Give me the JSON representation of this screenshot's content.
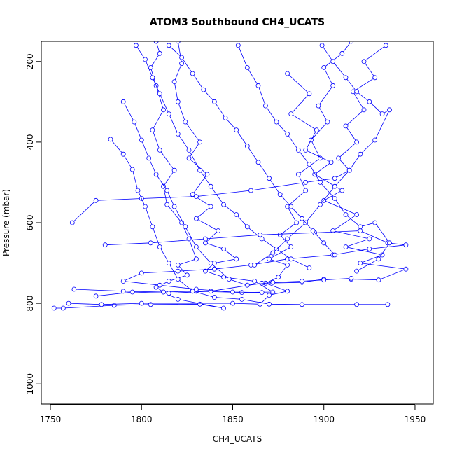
{
  "chart_data": {
    "type": "scatter",
    "title": "ATOM3 Southbound CH4_UCATS",
    "xlabel": "CH4_UCATS",
    "ylabel": "Pressure (mbar)",
    "xlim": [
      1745,
      1960
    ],
    "ylim": [
      1050,
      150
    ],
    "y_reversed": true,
    "grid": false,
    "legend": "none",
    "x_ticks": [
      "1750",
      "1800",
      "1850",
      "1900",
      "1950"
    ],
    "y_ticks": [
      "200",
      "400",
      "600",
      "800",
      "1000"
    ],
    "colors": {
      "series": "#0000ff",
      "axis": "#000000",
      "background": "#ffffff"
    },
    "series": [
      {
        "values": [
          [
            1752,
            812
          ],
          [
            1757,
            812
          ],
          [
            1785,
            805
          ],
          [
            1805,
            803
          ],
          [
            1832,
            802
          ],
          [
            1845,
            812
          ],
          [
            1820,
            790
          ],
          [
            1812,
            772
          ],
          [
            1808,
            760
          ],
          [
            1815,
            745
          ],
          [
            1825,
            730
          ],
          [
            1820,
            705
          ],
          [
            1830,
            690
          ],
          [
            1826,
            640
          ],
          [
            1822,
            600
          ],
          [
            1814,
            555
          ],
          [
            1812,
            510
          ],
          [
            1818,
            470
          ],
          [
            1810,
            420
          ],
          [
            1806,
            370
          ],
          [
            1812,
            320
          ],
          [
            1808,
            260
          ],
          [
            1805,
            215
          ],
          [
            1810,
            180
          ],
          [
            1808,
            150
          ]
        ]
      },
      {
        "values": [
          [
            1760,
            800
          ],
          [
            1778,
            803
          ],
          [
            1800,
            800
          ],
          [
            1850,
            800
          ],
          [
            1865,
            802
          ],
          [
            1870,
            780
          ],
          [
            1880,
            770
          ],
          [
            1868,
            750
          ],
          [
            1875,
            735
          ],
          [
            1880,
            705
          ],
          [
            1870,
            690
          ],
          [
            1882,
            660
          ],
          [
            1876,
            630
          ],
          [
            1885,
            600
          ],
          [
            1880,
            560
          ],
          [
            1890,
            520
          ],
          [
            1886,
            480
          ],
          [
            1898,
            440
          ],
          [
            1893,
            395
          ],
          [
            1902,
            350
          ],
          [
            1897,
            310
          ],
          [
            1905,
            260
          ],
          [
            1900,
            215
          ],
          [
            1910,
            180
          ],
          [
            1915,
            150
          ]
        ]
      },
      {
        "values": [
          [
            1763,
            765
          ],
          [
            1790,
            770
          ],
          [
            1812,
            772
          ],
          [
            1830,
            770
          ],
          [
            1855,
            773
          ],
          [
            1872,
            772
          ],
          [
            1862,
            745
          ],
          [
            1845,
            735
          ],
          [
            1835,
            720
          ],
          [
            1840,
            700
          ],
          [
            1852,
            690
          ],
          [
            1845,
            665
          ],
          [
            1835,
            650
          ],
          [
            1842,
            620
          ],
          [
            1830,
            590
          ],
          [
            1838,
            560
          ],
          [
            1828,
            530
          ],
          [
            1836,
            480
          ],
          [
            1826,
            440
          ],
          [
            1832,
            400
          ],
          [
            1824,
            350
          ],
          [
            1820,
            300
          ],
          [
            1818,
            250
          ],
          [
            1822,
            205
          ],
          [
            1820,
            150
          ]
        ]
      },
      {
        "values": [
          [
            1775,
            782
          ],
          [
            1795,
            772
          ],
          [
            1815,
            775
          ],
          [
            1838,
            770
          ],
          [
            1866,
            750
          ],
          [
            1888,
            748
          ],
          [
            1900,
            740
          ],
          [
            1915,
            740
          ],
          [
            1930,
            742
          ],
          [
            1945,
            715
          ],
          [
            1920,
            700
          ],
          [
            1932,
            680
          ],
          [
            1912,
            660
          ],
          [
            1925,
            640
          ],
          [
            1905,
            620
          ],
          [
            1918,
            580
          ],
          [
            1900,
            545
          ],
          [
            1910,
            520
          ],
          [
            1895,
            480
          ],
          [
            1904,
            450
          ],
          [
            1890,
            420
          ],
          [
            1896,
            370
          ],
          [
            1882,
            330
          ],
          [
            1892,
            280
          ],
          [
            1880,
            230
          ]
        ]
      },
      {
        "values": [
          [
            1762,
            600
          ],
          [
            1775,
            545
          ],
          [
            1800,
            540
          ],
          [
            1830,
            535
          ],
          [
            1860,
            520
          ],
          [
            1890,
            500
          ],
          [
            1906,
            490
          ],
          [
            1914,
            470
          ],
          [
            1908,
            440
          ],
          [
            1918,
            400
          ],
          [
            1912,
            360
          ],
          [
            1922,
            320
          ],
          [
            1916,
            275
          ],
          [
            1928,
            240
          ],
          [
            1922,
            200
          ],
          [
            1934,
            160
          ]
        ]
      },
      {
        "values": [
          [
            1780,
            655
          ],
          [
            1805,
            650
          ],
          [
            1835,
            640
          ],
          [
            1865,
            630
          ],
          [
            1895,
            625
          ],
          [
            1920,
            620
          ],
          [
            1935,
            650
          ],
          [
            1945,
            655
          ],
          [
            1925,
            665
          ],
          [
            1905,
            680
          ],
          [
            1880,
            690
          ],
          [
            1860,
            705
          ],
          [
            1840,
            715
          ],
          [
            1820,
            720
          ],
          [
            1800,
            725
          ],
          [
            1790,
            745
          ],
          [
            1810,
            755
          ],
          [
            1830,
            765
          ],
          [
            1850,
            772
          ],
          [
            1866,
            773
          ]
        ]
      },
      {
        "values": [
          [
            1783,
            393
          ],
          [
            1790,
            430
          ],
          [
            1795,
            468
          ],
          [
            1798,
            520
          ],
          [
            1802,
            560
          ],
          [
            1806,
            610
          ],
          [
            1810,
            660
          ],
          [
            1815,
            700
          ],
          [
            1820,
            740
          ],
          [
            1828,
            770
          ],
          [
            1840,
            785
          ],
          [
            1855,
            790
          ],
          [
            1870,
            802
          ],
          [
            1888,
            803
          ],
          [
            1918,
            803
          ],
          [
            1935,
            803
          ]
        ]
      },
      {
        "values": [
          [
            1790,
            300
          ],
          [
            1796,
            350
          ],
          [
            1800,
            395
          ],
          [
            1804,
            440
          ],
          [
            1808,
            480
          ],
          [
            1814,
            520
          ],
          [
            1818,
            560
          ],
          [
            1824,
            610
          ],
          [
            1830,
            660
          ],
          [
            1838,
            700
          ],
          [
            1848,
            740
          ],
          [
            1858,
            755
          ],
          [
            1872,
            748
          ],
          [
            1888,
            745
          ],
          [
            1900,
            742
          ],
          [
            1915,
            738
          ]
        ]
      },
      {
        "values": [
          [
            1797,
            160
          ],
          [
            1802,
            195
          ],
          [
            1806,
            240
          ],
          [
            1810,
            280
          ],
          [
            1815,
            330
          ],
          [
            1820,
            380
          ],
          [
            1826,
            420
          ],
          [
            1832,
            470
          ],
          [
            1838,
            510
          ],
          [
            1845,
            555
          ],
          [
            1852,
            580
          ],
          [
            1858,
            610
          ],
          [
            1866,
            640
          ],
          [
            1874,
            665
          ],
          [
            1882,
            690
          ],
          [
            1892,
            712
          ]
        ]
      },
      {
        "values": [
          [
            1853,
            160
          ],
          [
            1858,
            215
          ],
          [
            1864,
            260
          ],
          [
            1868,
            310
          ],
          [
            1874,
            350
          ],
          [
            1880,
            380
          ],
          [
            1886,
            420
          ],
          [
            1892,
            455
          ],
          [
            1898,
            500
          ],
          [
            1906,
            540
          ],
          [
            1912,
            580
          ],
          [
            1920,
            610
          ],
          [
            1928,
            600
          ],
          [
            1936,
            650
          ],
          [
            1930,
            690
          ],
          [
            1918,
            720
          ]
        ]
      },
      {
        "values": [
          [
            1899,
            160
          ],
          [
            1905,
            200
          ],
          [
            1912,
            240
          ],
          [
            1918,
            275
          ],
          [
            1925,
            300
          ],
          [
            1932,
            330
          ],
          [
            1936,
            320
          ],
          [
            1928,
            395
          ],
          [
            1920,
            430
          ],
          [
            1914,
            470
          ],
          [
            1906,
            510
          ],
          [
            1898,
            555
          ],
          [
            1890,
            600
          ],
          [
            1880,
            640
          ],
          [
            1872,
            675
          ],
          [
            1862,
            705
          ]
        ]
      },
      {
        "values": [
          [
            1815,
            160
          ],
          [
            1822,
            190
          ],
          [
            1828,
            230
          ],
          [
            1834,
            270
          ],
          [
            1840,
            300
          ],
          [
            1846,
            340
          ],
          [
            1852,
            370
          ],
          [
            1858,
            410
          ],
          [
            1864,
            450
          ],
          [
            1870,
            490
          ],
          [
            1876,
            530
          ],
          [
            1882,
            560
          ],
          [
            1888,
            590
          ],
          [
            1894,
            620
          ],
          [
            1900,
            650
          ],
          [
            1906,
            680
          ]
        ]
      }
    ]
  }
}
